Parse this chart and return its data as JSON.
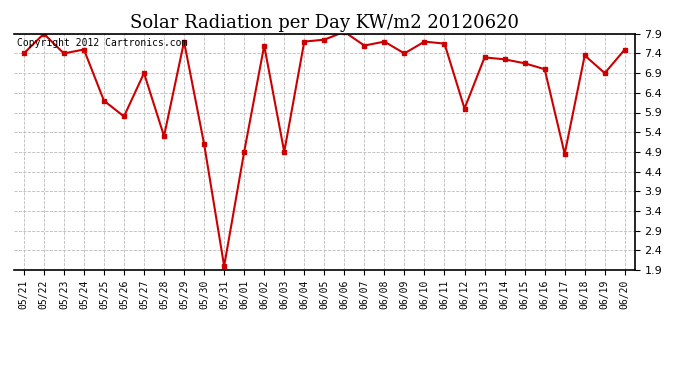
{
  "title": "Solar Radiation per Day KW/m2 20120620",
  "copyright": "Copyright 2012 Cartronics.com",
  "dates": [
    "05/21",
    "05/22",
    "05/23",
    "05/24",
    "05/25",
    "05/26",
    "05/27",
    "05/28",
    "05/29",
    "05/30",
    "05/31",
    "06/01",
    "06/02",
    "06/03",
    "06/04",
    "06/05",
    "06/06",
    "06/07",
    "06/08",
    "06/09",
    "06/10",
    "06/11",
    "06/12",
    "06/13",
    "06/14",
    "06/15",
    "06/16",
    "06/17",
    "06/18",
    "06/19",
    "06/20"
  ],
  "values": [
    7.4,
    7.9,
    7.4,
    7.5,
    6.2,
    5.8,
    6.9,
    5.3,
    7.7,
    5.1,
    2.0,
    4.9,
    7.6,
    4.9,
    7.7,
    7.75,
    7.95,
    7.6,
    7.7,
    7.4,
    7.7,
    7.65,
    6.0,
    7.3,
    7.25,
    7.15,
    7.0,
    4.85,
    7.35,
    6.9,
    7.5
  ],
  "line_color": "#cc0000",
  "marker_color": "#cc0000",
  "bg_color": "#ffffff",
  "grid_color": "#bbbbbb",
  "ylim_min": 1.9,
  "ylim_max": 7.9,
  "yticks": [
    1.9,
    2.4,
    2.9,
    3.4,
    3.9,
    4.4,
    4.9,
    5.4,
    5.9,
    6.4,
    6.9,
    7.4,
    7.9
  ],
  "title_fontsize": 13,
  "copyright_fontsize": 7,
  "tick_fontsize": 7,
  "ytick_fontsize": 8
}
